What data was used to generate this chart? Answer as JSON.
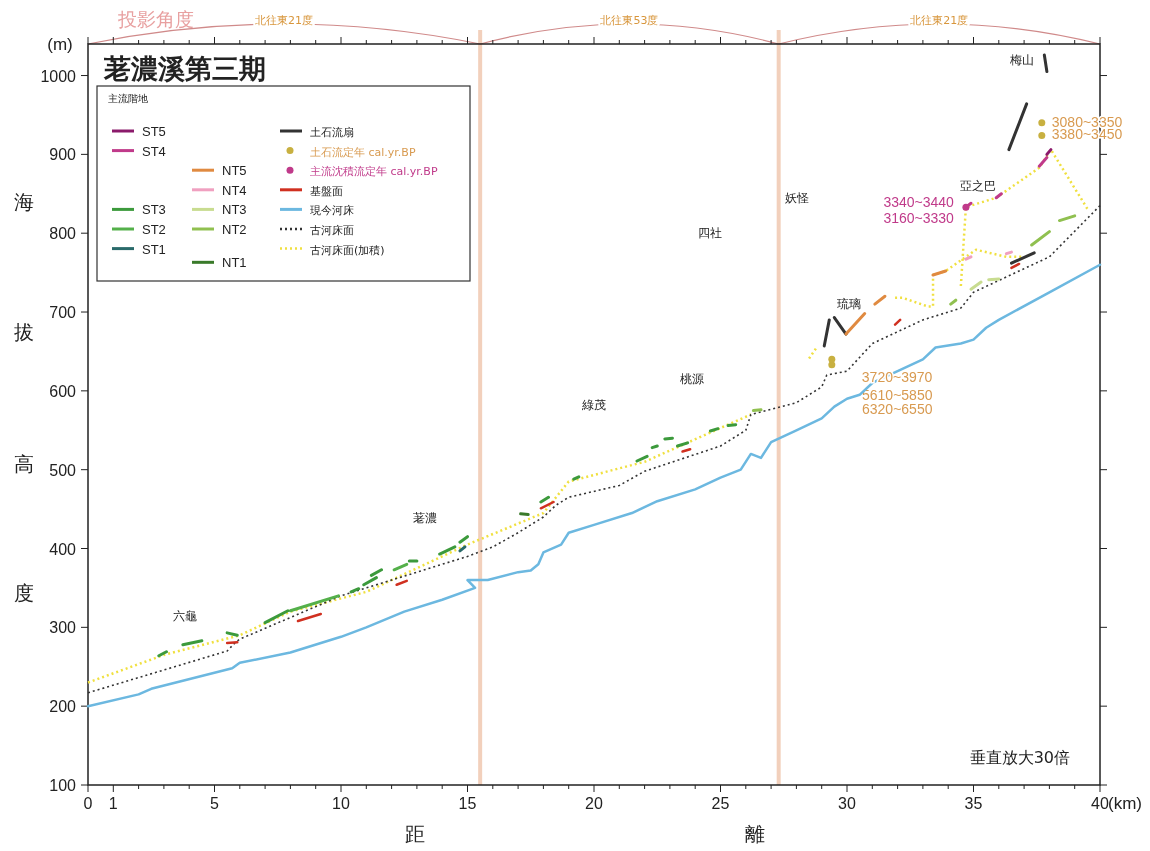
{
  "chart_data": {
    "type": "line",
    "title": "荖濃溪第三期",
    "legend_title": "主流階地",
    "xlabel": "距離",
    "ylabel": "海拔高度",
    "xlim": [
      0,
      40
    ],
    "ylim": [
      100,
      1040
    ],
    "xticks": [
      0,
      1,
      {
        "value": 2,
        "label": null
      },
      {
        "value": 3,
        "label": null
      },
      {
        "value": 4,
        "label": null
      },
      5,
      {
        "value": 6,
        "label": null
      },
      {
        "value": 7,
        "label": null
      },
      {
        "value": 8,
        "label": null
      },
      {
        "value": 9,
        "label": null
      },
      10,
      {
        "value": 11,
        "label": null
      },
      {
        "value": 12,
        "label": null
      },
      {
        "value": 13,
        "label": null
      },
      {
        "value": 14,
        "label": null
      },
      15,
      {
        "value": 16,
        "label": null
      },
      {
        "value": 17,
        "label": null
      },
      {
        "value": 18,
        "label": null
      },
      {
        "value": 19,
        "label": null
      },
      20,
      {
        "value": 21,
        "label": null
      },
      {
        "value": 22,
        "label": null
      },
      {
        "value": 23,
        "label": null
      },
      {
        "value": 24,
        "label": null
      },
      25,
      {
        "value": 26,
        "label": null
      },
      {
        "value": 27,
        "label": null
      },
      {
        "value": 28,
        "label": null
      },
      {
        "value": 29,
        "label": null
      },
      30,
      {
        "value": 31,
        "label": null
      },
      {
        "value": 32,
        "label": null
      },
      {
        "value": 33,
        "label": null
      },
      {
        "value": 34,
        "label": null
      },
      35,
      {
        "value": 36,
        "label": null
      },
      {
        "value": 37,
        "label": null
      },
      {
        "value": 38,
        "label": null
      },
      {
        "value": 39,
        "label": null
      },
      40
    ],
    "yticks": [
      100,
      200,
      300,
      400,
      500,
      600,
      700,
      800,
      900,
      1000
    ],
    "legend": "top left",
    "ref_lines": [
      {
        "axis": "x",
        "value": 15.5,
        "color": "#f2d0bc"
      },
      {
        "axis": "x",
        "value": 27.3,
        "color": "#f2d0bc"
      }
    ],
    "series": [
      {
        "name": "ST5",
        "color": "#8b1a6b",
        "line_style": "solid",
        "x": [
          37.9,
          38.06
        ],
        "values": [
          900,
          906
        ]
      },
      {
        "name": "ST4",
        "color": "#c03a8a",
        "line_style": "solid",
        "x": [
          34.7,
          34.9,
          35.3,
          35.9,
          36.1,
          36.8,
          37.6,
          37.9
        ],
        "values": [
          833,
          838,
          null,
          845,
          850,
          null,
          885,
          896
        ]
      },
      {
        "name": "ST3",
        "color": "#3c9a3c",
        "line_style": "solid",
        "x": [
          2.8,
          3.1,
          3.4,
          3.75,
          4.5,
          5.0,
          5.5,
          5.9,
          6.4,
          7.0,
          7.9,
          8.1,
          10.4,
          10.7,
          10.8,
          10.9,
          11.4,
          11.3,
          11.2,
          11.6,
          12.1,
          12.7,
          13.0,
          13.5,
          13.9,
          14.5,
          14.6,
          14.7,
          15.0,
          16.0,
          17.9,
          18.2,
          18.8,
          19.2,
          19.4,
          20.5,
          21.7,
          22.1,
          22.2,
          22.3,
          22.5,
          22.6,
          22.8,
          23.1,
          23.2,
          23.3,
          23.7,
          24.2,
          24.6,
          24.9,
          25.0,
          25.3,
          25.6
        ],
        "values": [
          264,
          269,
          null,
          278,
          283,
          null,
          293,
          290,
          null,
          306,
          321,
          null,
          345,
          349,
          null,
          354,
          363,
          null,
          366,
          373,
          null,
          384,
          384,
          null,
          393,
          402,
          null,
          408,
          415,
          null,
          459,
          465,
          null,
          488,
          491,
          null,
          511,
          517,
          null,
          528,
          530,
          null,
          539,
          540,
          null,
          530,
          534,
          null,
          549,
          552,
          null,
          556,
          557
        ]
      },
      {
        "name": "ST2",
        "color": "#54b04a",
        "line_style": "solid",
        "x": [
          8.0,
          9.9,
          11.0,
          12.1,
          12.6
        ],
        "values": [
          321,
          340,
          null,
          373,
          380
        ]
      },
      {
        "name": "ST1",
        "color": "#2a6a6a",
        "line_style": "solid",
        "x": [
          14.7,
          14.9
        ],
        "values": [
          397,
          402
        ]
      },
      {
        "name": "NT5",
        "color": "#e08a40",
        "line_style": "solid",
        "x": [
          29.96,
          30.7,
          30.9,
          31.1,
          31.5,
          32.5,
          33.4,
          33.9
        ],
        "values": [
          672,
          698,
          null,
          710,
          720,
          null,
          747,
          752
        ]
      },
      {
        "name": "NT4",
        "color": "#f0a0c0",
        "line_style": "solid",
        "x": [
          34.7,
          34.9,
          35.5,
          36.3,
          36.5
        ],
        "values": [
          767,
          770,
          null,
          774,
          776
        ]
      },
      {
        "name": "NT3",
        "color": "#c8dc90",
        "line_style": "solid",
        "x": [
          34.9,
          35.3,
          35.5,
          35.6,
          36.0
        ],
        "values": [
          729,
          738,
          null,
          741,
          742
        ]
      },
      {
        "name": "NT2",
        "color": "#90c050",
        "line_style": "solid",
        "x": [
          26.3,
          26.6,
          30.0,
          34.1,
          34.3,
          35.0,
          37.3,
          38.0,
          38.2,
          38.4,
          39.0
        ],
        "values": [
          575,
          576,
          null,
          710,
          715,
          null,
          785,
          802,
          null,
          816,
          822
        ]
      },
      {
        "name": "NT1",
        "color": "#3a7a2a",
        "line_style": "solid",
        "x": [
          17.1,
          17.4
        ],
        "values": [
          444,
          443
        ]
      },
      {
        "name": "土石流扇",
        "color": "#333333",
        "line_style": "solid",
        "x": [
          29.1,
          29.3,
          29.4,
          29.5,
          29.96,
          33.0,
          36.5,
          37.4,
          37.0,
          36.4,
          37.1,
          37.5,
          37.8,
          37.9
        ],
        "values": [
          657,
          690,
          null,
          693,
          672,
          null,
          762,
          775,
          null,
          906,
          964,
          null,
          1026,
          1005
        ]
      },
      {
        "name": "土石流定年 cal.yr.BP",
        "color": "#c8b040",
        "type": "scatter",
        "marker": "circle",
        "x": [
          29.4,
          29.4,
          37.7,
          37.7
        ],
        "values": [
          633,
          640,
          940,
          924
        ]
      },
      {
        "name": "主流沈積流定年 cal.yr.BP",
        "color": "#c03a8a",
        "type": "scatter",
        "marker": "circle",
        "x": [
          34.7
        ],
        "values": [
          833
        ]
      },
      {
        "name": "基盤面",
        "color": "#d03020",
        "line_style": "solid",
        "x": [
          5.5,
          5.9,
          7.0,
          8.3,
          9.2,
          10.5,
          12.2,
          12.6,
          15.0,
          17.9,
          18.4,
          21.0,
          23.5,
          23.8,
          28.0,
          31.9,
          32.1,
          34.0,
          36.5,
          36.8
        ],
        "values": [
          280,
          281,
          null,
          308,
          317,
          null,
          354,
          359,
          null,
          451,
          459,
          null,
          523,
          526,
          null,
          684,
          690,
          null,
          756,
          761
        ]
      },
      {
        "name": "現今河床",
        "color": "#6cb8e0",
        "line_style": "solid",
        "x": [
          0,
          2,
          2.5,
          5.7,
          6,
          8,
          10,
          11,
          12.5,
          14,
          15.3,
          15,
          15.8,
          17,
          17.5,
          17.8,
          18,
          18.7,
          19,
          20,
          21.5,
          22.5,
          24,
          25,
          25.8,
          26.2,
          26.6,
          27,
          28,
          29,
          29.5,
          30,
          30.5,
          31,
          32,
          33,
          33.5,
          34.5,
          35,
          35.5,
          36,
          38,
          40
        ],
        "values": [
          200,
          215,
          222,
          248,
          255,
          268,
          288,
          300,
          320,
          335,
          350,
          360,
          360,
          370,
          372,
          380,
          395,
          405,
          420,
          430,
          445,
          460,
          475,
          490,
          500,
          520,
          515,
          535,
          550,
          565,
          580,
          590,
          595,
          610,
          625,
          640,
          655,
          660,
          665,
          680,
          690,
          725,
          760
        ]
      },
      {
        "name": "古河床面",
        "color": "#333333",
        "line_style": "dotted",
        "x": [
          0,
          5.5,
          5.8,
          6,
          10,
          15,
          16,
          17,
          18,
          18.5,
          19,
          21,
          22,
          25,
          26,
          26.2,
          28,
          29,
          29.2,
          30,
          31,
          33,
          34,
          34.5,
          35,
          36,
          38,
          40
        ],
        "values": [
          217,
          270,
          280,
          285,
          340,
          390,
          402,
          420,
          440,
          455,
          465,
          480,
          498,
          530,
          550,
          570,
          585,
          605,
          620,
          625,
          660,
          690,
          700,
          705,
          725,
          740,
          770,
          835
        ]
      },
      {
        "name": "古河床面(加積)",
        "color": "#f0e040",
        "line_style": "dotted",
        "x": [
          0,
          3,
          6,
          8,
          11,
          15,
          18,
          19,
          22,
          26.2,
          27.5,
          28.5,
          28.8,
          30,
          31.9,
          32.2,
          33.2,
          33.4,
          33.4,
          33.9,
          35.1,
          36.3,
          36.9
        ],
        "values": [
          230,
          265,
          290,
          320,
          345,
          405,
          445,
          485,
          510,
          570,
          null,
          641,
          655,
          null,
          718,
          718,
          707,
          707,
          747,
          752,
          779,
          770,
          770
        ]
      },
      {
        "color": "#f0e040",
        "line_style": "dotted",
        "x": [
          34.5,
          34.7,
          35.9,
          37.6,
          38.06,
          39.5
        ],
        "values": [
          733,
          833,
          845,
          883,
          906,
          831
        ]
      }
    ],
    "annotations": [
      "投影角度",
      "北往東21度",
      "北往東53度",
      "北往東21度",
      "垂直放大30倍",
      "(m)",
      "(km)",
      "六龜",
      "荖濃",
      "綠茂",
      "桃源",
      "四社",
      "妖怪",
      "琉璃",
      "亞之巴",
      "梅山",
      "5610~5850",
      "6320~6550",
      {
        "text": "3340~3440",
        "x": 34.7,
        "y": 833
      },
      {
        "text": "3160~3330",
        "x": 34.7,
        "y": 833
      },
      {
        "text": "3080~3350",
        "x": 37.7,
        "y": 940
      },
      {
        "text": "3380~3450",
        "x": 37.7,
        "y": 924
      },
      {
        "text": "3720~3970",
        "x": 29.4,
        "y": 633
      }
    ]
  }
}
